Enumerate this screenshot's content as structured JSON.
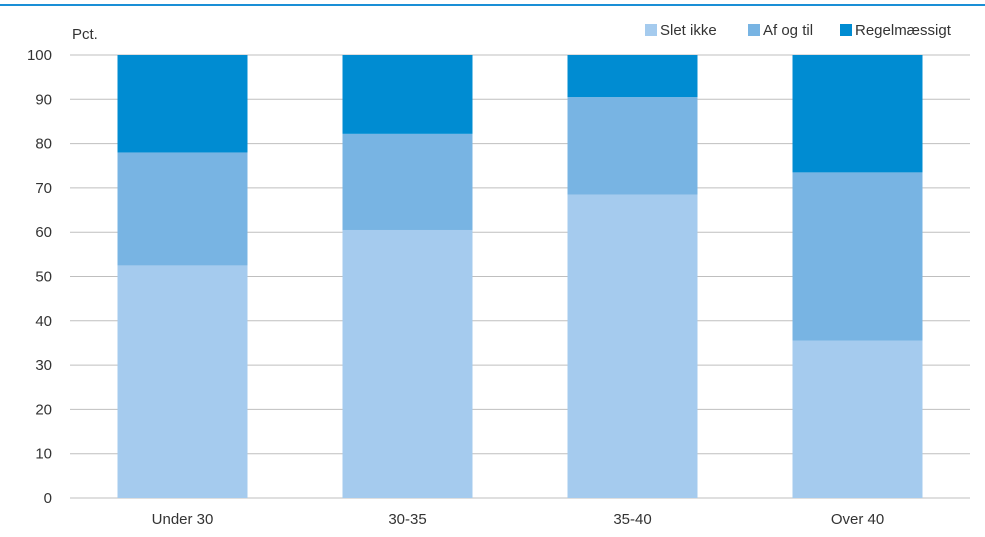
{
  "chart_data": {
    "type": "bar",
    "stacked": true,
    "unit_label": "Pct.",
    "categories": [
      "Under 30",
      "30-35",
      "35-40",
      "Over 40"
    ],
    "series": [
      {
        "name": "Slet ikke",
        "color": "#a5cbee",
        "values": [
          52.5,
          60.5,
          68.5,
          35.5
        ]
      },
      {
        "name": "Af og til",
        "color": "#78b4e3",
        "values": [
          25.5,
          21.7,
          22.0,
          38.0
        ]
      },
      {
        "name": "Regelmæssigt",
        "color": "#008cd2",
        "values": [
          22.0,
          17.8,
          9.5,
          26.5
        ]
      }
    ],
    "ylim": [
      0,
      100
    ],
    "yticks": [
      "0",
      "10",
      "20",
      "30",
      "40",
      "50",
      "60",
      "70",
      "80",
      "90",
      "100"
    ],
    "grid": true,
    "legend_position": "top-right"
  },
  "colors": {
    "accent_rule": "#1a8fd6",
    "gridline": "#bfbfbf",
    "text": "#333333"
  }
}
